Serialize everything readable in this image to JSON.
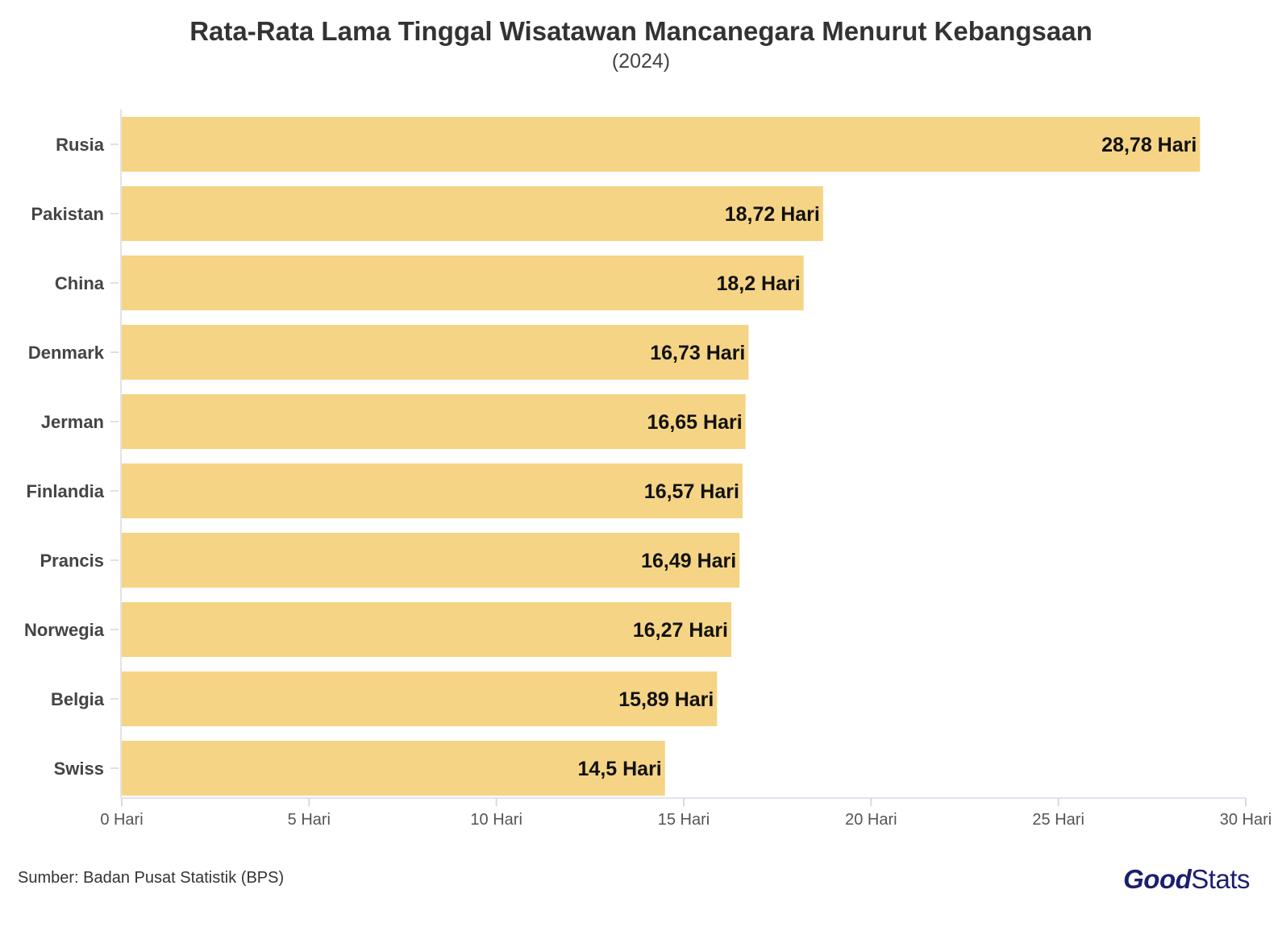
{
  "chart_data": {
    "type": "bar",
    "orientation": "horizontal",
    "title": "Rata-Rata Lama Tinggal Wisatawan Mancanegara Menurut Kebangsaan",
    "subtitle": "(2024)",
    "categories": [
      "Rusia",
      "Pakistan",
      "China",
      "Denmark",
      "Jerman",
      "Finlandia",
      "Prancis",
      "Norwegia",
      "Belgia",
      "Swiss"
    ],
    "values": [
      28.78,
      18.72,
      18.2,
      16.73,
      16.65,
      16.57,
      16.49,
      16.27,
      15.89,
      14.5
    ],
    "data_labels": [
      "28,78 Hari",
      "18,72 Hari",
      "18,2 Hari",
      "16,73 Hari",
      "16,65 Hari",
      "16,57 Hari",
      "16,49 Hari",
      "16,27 Hari",
      "15,89 Hari",
      "14,5 Hari"
    ],
    "xlim": [
      0,
      30
    ],
    "xticks": [
      0,
      5,
      10,
      15,
      20,
      25,
      30
    ],
    "xtick_labels": [
      "0 Hari",
      "5 Hari",
      "10 Hari",
      "15 Hari",
      "20 Hari",
      "25 Hari",
      "30 Hari"
    ],
    "xlabel": "",
    "ylabel": "",
    "grid": false,
    "bar_color": "#f5d485"
  },
  "footer": {
    "source": "Sumber: Badan Pusat Statistik (BPS)",
    "logo_part1": "Good",
    "logo_part2": "Stats"
  }
}
